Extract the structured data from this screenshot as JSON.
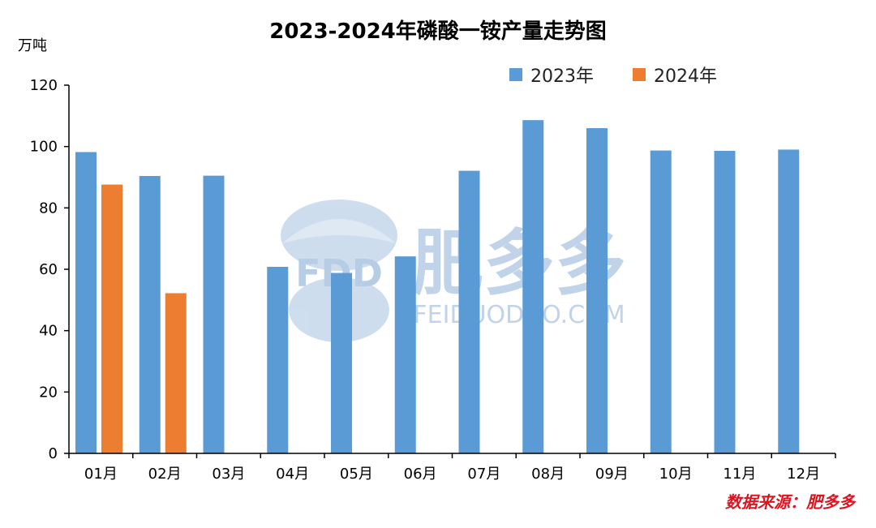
{
  "chart_data": {
    "type": "bar",
    "title": "2023-2024年磷酸一铵产量走势图",
    "ylabel": "万吨",
    "ylim": [
      0,
      120
    ],
    "yticks": [
      0,
      20,
      40,
      60,
      80,
      100,
      120
    ],
    "categories": [
      "01月",
      "02月",
      "03月",
      "04月",
      "05月",
      "06月",
      "07月",
      "08月",
      "09月",
      "10月",
      "11月",
      "12月"
    ],
    "series": [
      {
        "name": "2023年",
        "color": "#5b9bd5",
        "values": [
          98.2,
          90.4,
          90.5,
          60.8,
          58.8,
          64.2,
          92.1,
          108.6,
          106.0,
          98.7,
          98.6,
          99.0
        ]
      },
      {
        "name": "2024年",
        "color": "#ed7d31",
        "values": [
          87.6,
          52.2,
          null,
          null,
          null,
          null,
          null,
          null,
          null,
          null,
          null,
          null
        ]
      }
    ],
    "legend_position": "top-right",
    "grid": false
  },
  "watermark": {
    "brand": "肥多多",
    "logo_text": "FDD",
    "url": "FEIDUODUO.COM"
  },
  "source_note": "数据来源：肥多多"
}
